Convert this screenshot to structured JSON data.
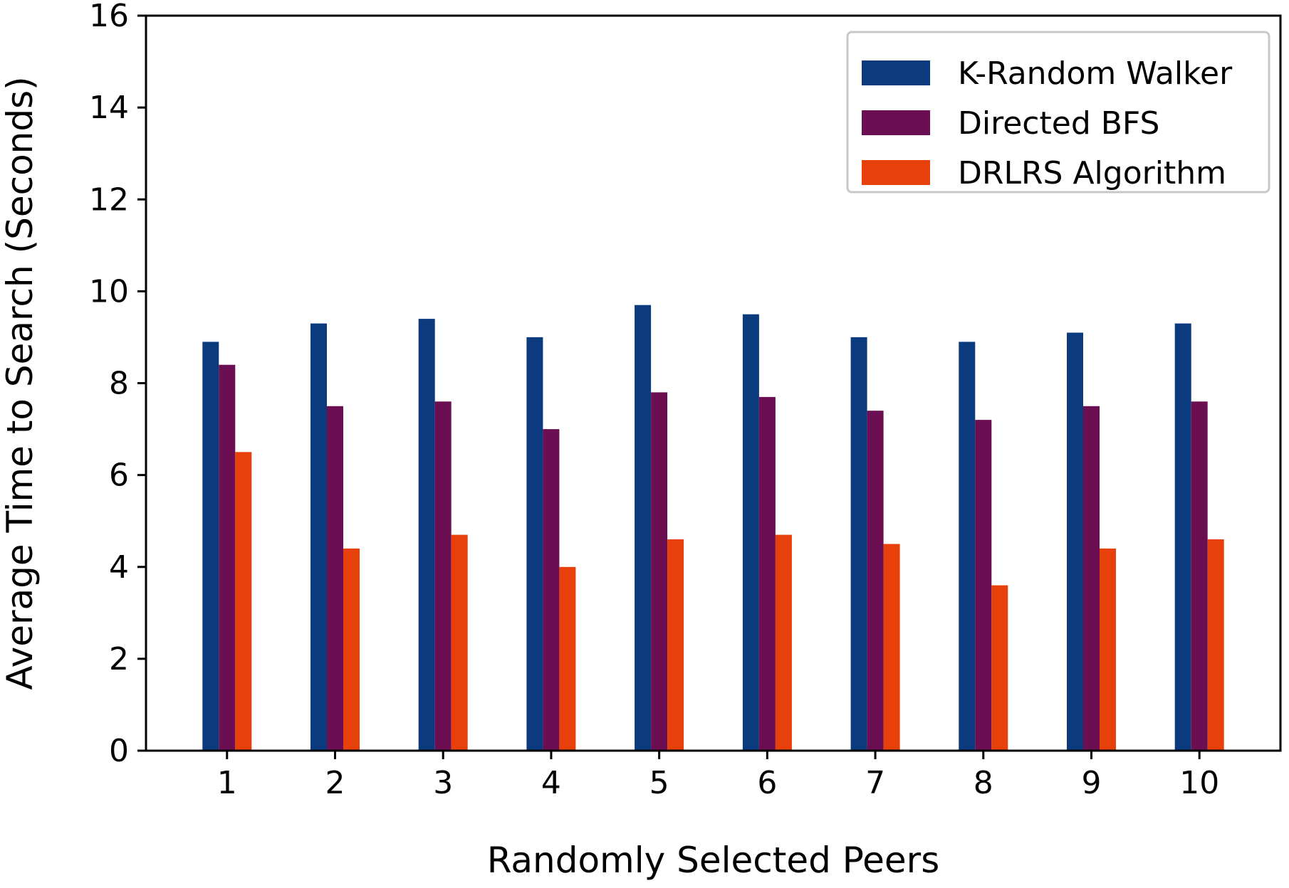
{
  "chart_data": {
    "type": "bar",
    "title": "",
    "xlabel": "Randomly Selected Peers",
    "ylabel": "Average Time to Search (Seconds)",
    "categories": [
      "1",
      "2",
      "3",
      "4",
      "5",
      "6",
      "7",
      "8",
      "9",
      "10"
    ],
    "ylim": [
      0,
      16
    ],
    "yticks": [
      "0",
      "2",
      "4",
      "6",
      "8",
      "10",
      "12",
      "14",
      "16"
    ],
    "grid": false,
    "legend_position": "top-right",
    "series": [
      {
        "name": "K-Random Walker",
        "color": "#0b3a7e",
        "values": [
          8.9,
          9.3,
          9.4,
          9.0,
          9.7,
          9.5,
          9.0,
          8.9,
          9.1,
          9.3
        ]
      },
      {
        "name": "Directed BFS",
        "color": "#6b0f52",
        "values": [
          8.4,
          7.5,
          7.6,
          7.0,
          7.8,
          7.7,
          7.4,
          7.2,
          7.5,
          7.6
        ]
      },
      {
        "name": "DRLRS Algorithm",
        "color": "#e8400a",
        "values": [
          6.5,
          4.4,
          4.7,
          4.0,
          4.6,
          4.7,
          4.5,
          3.6,
          4.4,
          4.6
        ]
      }
    ]
  }
}
